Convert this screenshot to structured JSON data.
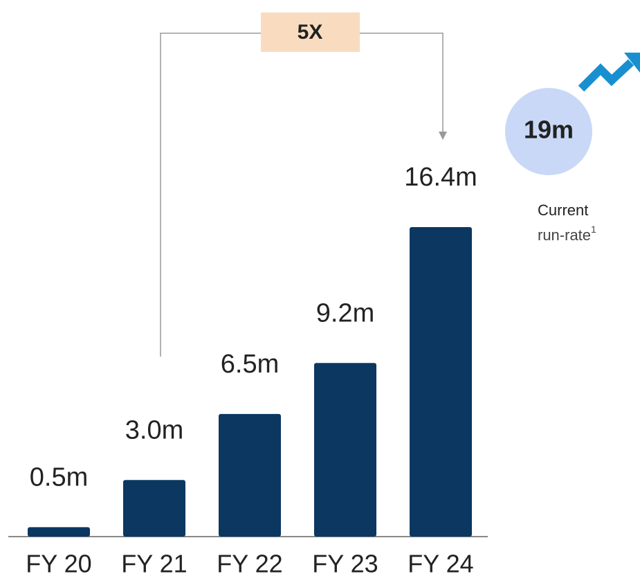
{
  "chart_data": {
    "type": "bar",
    "categories": [
      "FY 20",
      "FY 21",
      "FY 22",
      "FY 23",
      "FY 24"
    ],
    "values": [
      0.5,
      3.0,
      6.5,
      9.2,
      16.4
    ],
    "value_labels": [
      "0.5m",
      "3.0m",
      "6.5m",
      "9.2m",
      "16.4m"
    ],
    "color": "#0b3761",
    "annotations": {
      "growth": "5X",
      "run_rate": "19m",
      "run_rate_caption": [
        "Current",
        "run-rate"
      ],
      "footnote": "1"
    }
  }
}
